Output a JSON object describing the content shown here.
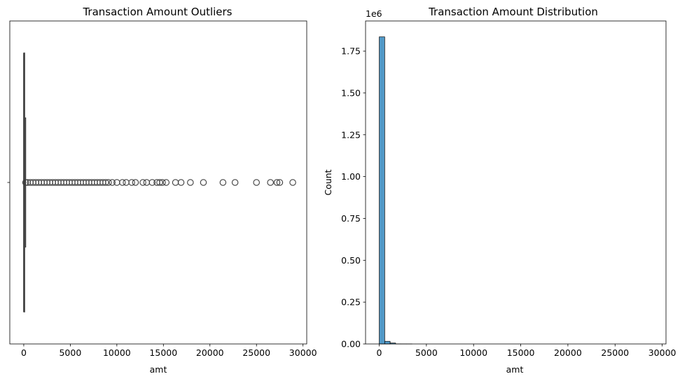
{
  "chart_data": [
    {
      "type": "boxplot",
      "title": "Transaction Amount Outliers",
      "xlabel": "amt",
      "ylabel": "",
      "xlim": [
        -1500,
        30400
      ],
      "xticks": [
        0,
        5000,
        10000,
        15000,
        20000,
        25000,
        30000
      ],
      "xtick_labels": [
        "0",
        "5000",
        "10000",
        "15000",
        "20000",
        "25000",
        "30000"
      ],
      "orientation": "horizontal",
      "box": {
        "min": 1,
        "q1": 10,
        "median": 47,
        "q3": 83,
        "whisker_high": 193
      },
      "outliers": [
        200,
        400,
        700,
        1000,
        1300,
        1600,
        1900,
        2200,
        2500,
        2800,
        3100,
        3400,
        3700,
        4000,
        4300,
        4600,
        4900,
        5200,
        5500,
        5800,
        6100,
        6400,
        6700,
        7000,
        7300,
        7600,
        7900,
        8200,
        8500,
        8800,
        9100,
        9500,
        10000,
        10600,
        11000,
        11600,
        12000,
        12800,
        13200,
        13800,
        14300,
        14600,
        14900,
        15300,
        16300,
        16900,
        17900,
        19300,
        21400,
        22700,
        25000,
        26500,
        27200,
        27500,
        28900
      ],
      "grid": false,
      "colors": {
        "box": "#1f77b4",
        "edge": "#3d3d3d",
        "outlier_edge": "#3d3d3d"
      }
    },
    {
      "type": "histogram",
      "title": "Transaction Amount Distribution",
      "xlabel": "amt",
      "ylabel": "Count",
      "y_offset_label": "1e6",
      "xlim": [
        -1450,
        30400
      ],
      "ylim": [
        0,
        1.93
      ],
      "xticks": [
        0,
        5000,
        10000,
        15000,
        20000,
        25000,
        30000
      ],
      "xtick_labels": [
        "0",
        "5000",
        "10000",
        "15000",
        "20000",
        "25000",
        "30000"
      ],
      "yticks": [
        0.0,
        0.25,
        0.5,
        0.75,
        1.0,
        1.25,
        1.5,
        1.75
      ],
      "ytick_labels": [
        "0.00",
        "0.25",
        "0.50",
        "0.75",
        "1.00",
        "1.25",
        "1.50",
        "1.75"
      ],
      "bin_width": 578,
      "bin_start": 1,
      "counts_millions": [
        1.835,
        0.0158,
        0.0055,
        0.0006,
        0.0002,
        0.0001
      ],
      "grid": false,
      "colors": {
        "bar": "#5299c7",
        "edge": "#000000"
      }
    }
  ]
}
